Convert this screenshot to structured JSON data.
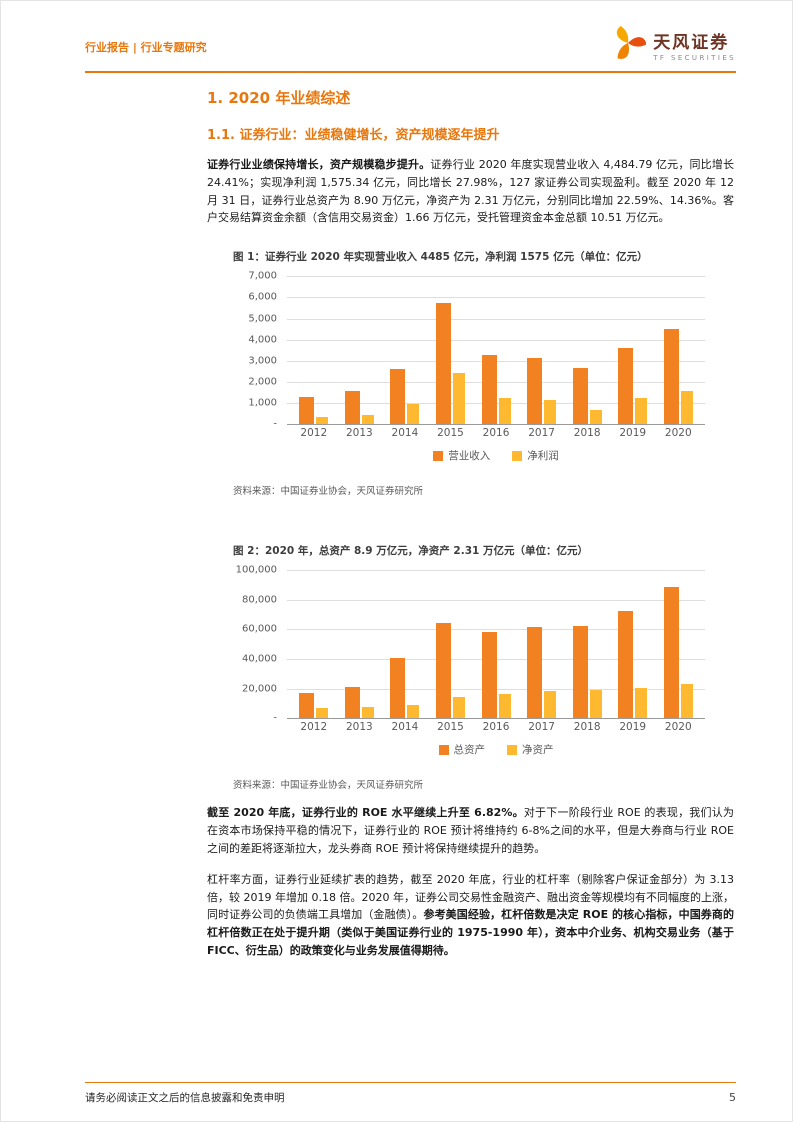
{
  "accent_color": "#E8770D",
  "header": {
    "left": "行业报告 | 行业专题研究",
    "logo_text": "天风证券",
    "logo_sub": "TF SECURITIES"
  },
  "content": {
    "h1": "1. 2020 年业绩综述",
    "h2": "1.1. 证券行业：业绩稳健增长，资产规模逐年提升",
    "paragraphs": [
      {
        "runs": [
          {
            "b": true,
            "t": "证券行业业绩保持增长，资产规模稳步提升。"
          },
          {
            "b": false,
            "t": "证券行业 2020 年度实现营业收入 4,484.79 亿元，同比增长 24.41%；实现净利润 1,575.34 亿元，同比增长 27.98%，127 家证券公司实现盈利。截至 2020 年 12 月 31 日，证券行业总资产为 8.90 万亿元，净资产为 2.31 万亿元，分别同比增加 22.59%、14.36%。客户交易结算资金余额（含信用交易资金）1.66 万亿元，受托管理资金本金总额 10.51 万亿元。"
          }
        ]
      },
      {
        "runs": [
          {
            "b": true,
            "t": "截至 2020 年底，证券行业的 ROE 水平继续上升至 6.82%。"
          },
          {
            "b": false,
            "t": "对于下一阶段行业 ROE 的表现，我们认为在资本市场保持平稳的情况下，证券行业的 ROE 预计将维持约 6-8%之间的水平，但是大券商与行业 ROE 之间的差距将逐渐拉大，龙头券商 ROE 预计将保持继续提升的趋势。"
          }
        ]
      },
      {
        "runs": [
          {
            "b": false,
            "t": "杠杆率方面，证券行业延续扩表的趋势，截至 2020 年底，行业的杠杆率（剔除客户保证金部分）为 3.13 倍，较 2019 年增加 0.18 倍。2020 年，证券公司交易性金融资产、融出资金等规模均有不同幅度的上涨，同时证券公司的负债端工具增加（金融债）。"
          },
          {
            "b": true,
            "t": "参考美国经验，杠杆倍数是决定 ROE 的核心指标，中国券商的杠杆倍数正在处于提升期（类似于美国证券行业的 1975-1990 年），资本中介业务、机构交易业务（基于 FICC、衍生品）的政策变化与业务发展值得期待。"
          }
        ]
      }
    ]
  },
  "figures": [
    {
      "title": "图 1：证券行业 2020 年实现营业收入 4485 亿元，净利润 1575 亿元（单位：亿元）",
      "source": "资料来源：中国证券业协会，天风证券研究所"
    },
    {
      "title": "图 2：2020 年，总资产 8.9 万亿元，净资产 2.31 万亿元（单位：亿元）",
      "source": "资料来源：中国证券业协会，天风证券研究所"
    }
  ],
  "chart_data": [
    {
      "type": "bar",
      "title": "证券行业 2020 年实现营业收入 4485 亿元，净利润 1575 亿元（单位：亿元）",
      "categories": [
        "2012",
        "2013",
        "2014",
        "2015",
        "2016",
        "2017",
        "2018",
        "2019",
        "2020"
      ],
      "series": [
        {
          "name": "营业收入",
          "color": "#F28121",
          "values": [
            1295,
            1592,
            2603,
            5752,
            3280,
            3113,
            2663,
            3605,
            4485
          ]
        },
        {
          "name": "净利润",
          "color": "#FFB930",
          "values": [
            329,
            440,
            966,
            2448,
            1234,
            1130,
            666,
            1231,
            1575
          ]
        }
      ],
      "xlabel": "",
      "ylabel": "",
      "ylim": [
        0,
        7000
      ],
      "ytick_step": 1000,
      "grid": true,
      "legend_position": "bottom"
    },
    {
      "type": "bar",
      "title": "2020 年，总资产 8.9 万亿元，净资产 2.31 万亿元（单位：亿元）",
      "categories": [
        "2012",
        "2013",
        "2014",
        "2015",
        "2016",
        "2017",
        "2018",
        "2019",
        "2020"
      ],
      "series": [
        {
          "name": "总资产",
          "color": "#F28121",
          "values": [
            17200,
            20800,
            40900,
            64500,
            58000,
            61500,
            62600,
            72600,
            89000
          ]
        },
        {
          "name": "净资产",
          "color": "#FFB930",
          "values": [
            6900,
            7500,
            9200,
            14500,
            16400,
            18500,
            18900,
            20200,
            23100
          ]
        }
      ],
      "xlabel": "",
      "ylabel": "",
      "ylim": [
        0,
        100000
      ],
      "ytick_step": 20000,
      "grid": true,
      "legend_position": "bottom"
    }
  ],
  "footer": {
    "disclaimer": "请务必阅读正文之后的信息披露和免责申明",
    "page_number": "5"
  }
}
